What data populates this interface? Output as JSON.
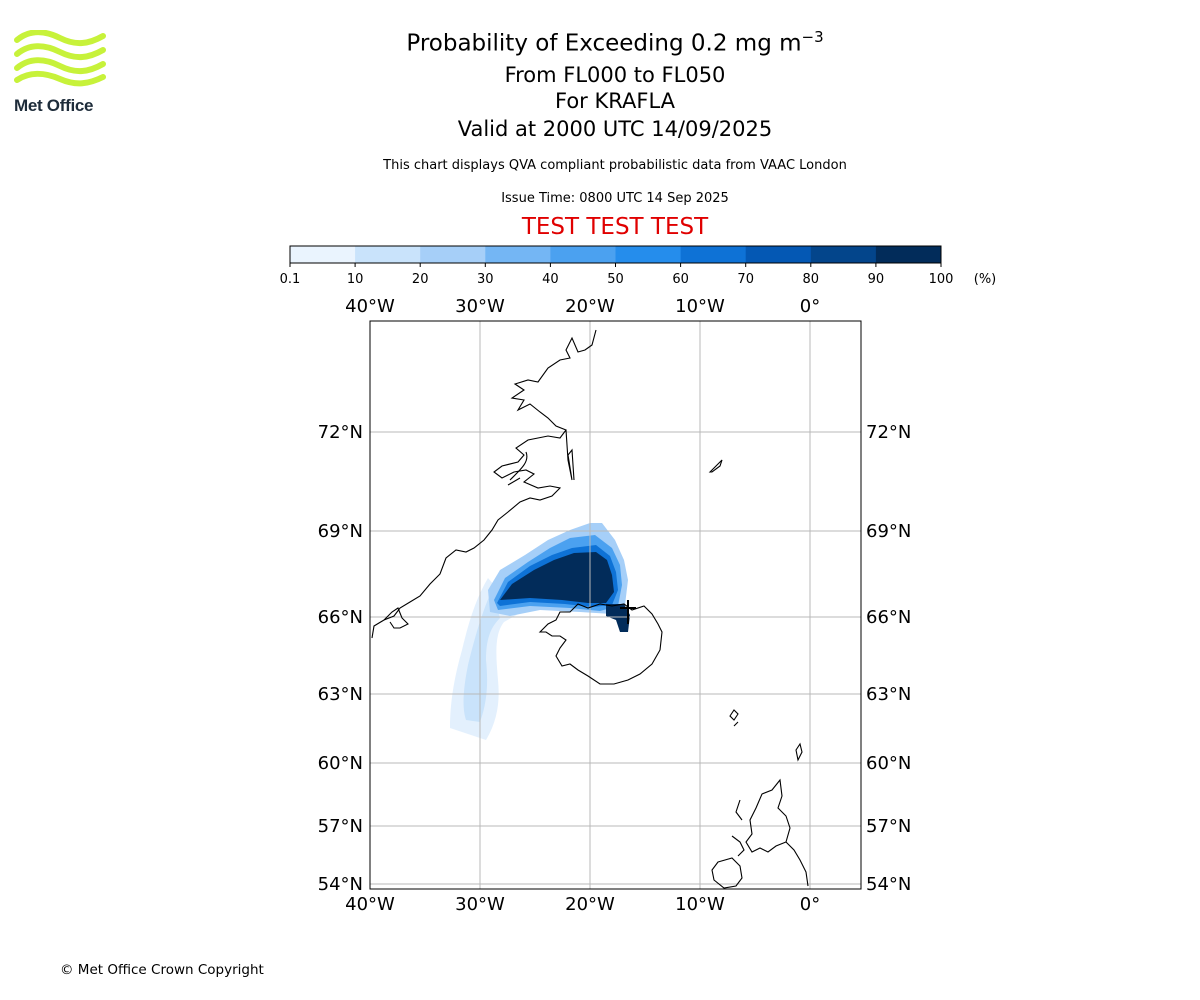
{
  "logo": {
    "text": "Met Office",
    "wave_color": "#c7f23a"
  },
  "title": {
    "main": "Probability of Exceeding 0.2 mg m",
    "main_sup": "−3"
  },
  "subtitle": {
    "levels": "From FL000 to FL050",
    "volcano": "For KRAFLA",
    "valid": "Valid at 2000 UTC 14/09/2025"
  },
  "description": "This chart displays QVA compliant probabilistic data from VAAC London",
  "issue_time": "Issue Time: 0800 UTC 14 Sep 2025",
  "test_banner": "TEST TEST TEST",
  "colorbar": {
    "ticks": [
      "0.1",
      "10",
      "20",
      "30",
      "40",
      "50",
      "60",
      "70",
      "80",
      "90",
      "100"
    ],
    "unit": "(%)",
    "colors": [
      "#eaf4fe",
      "#c9e3fb",
      "#a6cff8",
      "#74b6f4",
      "#4ba1f0",
      "#258dec",
      "#0e72d6",
      "#0458b4",
      "#03458b",
      "#022c5a"
    ]
  },
  "map": {
    "lon_labels": [
      "40°W",
      "30°W",
      "20°W",
      "10°W",
      "0°"
    ],
    "lat_labels": [
      "72°N",
      "69°N",
      "66°N",
      "63°N",
      "60°N",
      "57°N",
      "54°N"
    ],
    "lon_values": [
      -40,
      -30,
      -20,
      -10,
      0
    ],
    "lat_values": [
      72,
      69,
      66,
      63,
      60,
      57,
      54
    ]
  },
  "copyright": "© Met Office Crown Copyright"
}
